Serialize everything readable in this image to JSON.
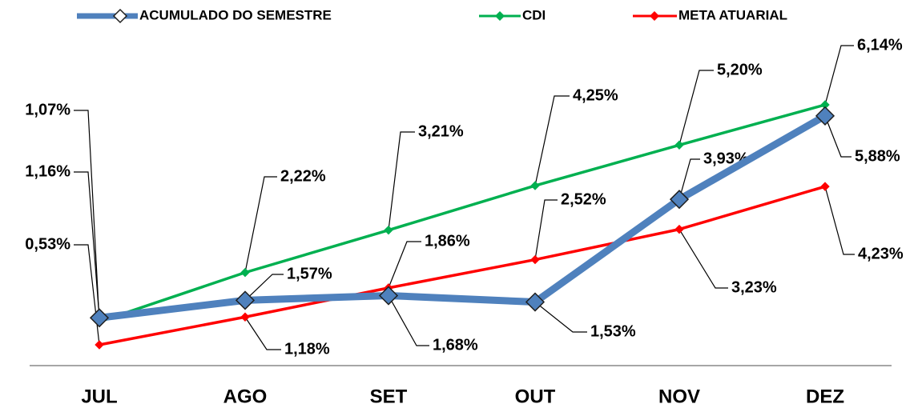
{
  "chart_data": {
    "type": "line",
    "categories": [
      "JUL",
      "AGO",
      "SET",
      "OUT",
      "NOV",
      "DEZ"
    ],
    "series": [
      {
        "name": "ACUMULADO DO SEMESTRE",
        "color": "#4f81bd",
        "values": [
          1.16,
          1.57,
          1.68,
          1.53,
          3.93,
          5.88
        ],
        "value_labels": [
          "1,16%",
          "1,57%",
          "1,68%",
          "1,53%",
          "3,93%",
          "5,88%"
        ]
      },
      {
        "name": "CDI",
        "color": "#00b050",
        "values": [
          1.07,
          2.22,
          3.21,
          4.25,
          5.2,
          6.14
        ],
        "value_labels": [
          "1,07%",
          "2,22%",
          "3,21%",
          "4,25%",
          "5,20%",
          "6,14%"
        ]
      },
      {
        "name": "META ATUARIAL",
        "color": "#ff0000",
        "values": [
          0.53,
          1.18,
          1.86,
          2.52,
          3.23,
          4.23
        ],
        "value_labels": [
          "0,53%",
          "1,18%",
          "1,86%",
          "2,52%",
          "3,23%",
          "4,23%"
        ]
      }
    ],
    "legend": "top"
  }
}
